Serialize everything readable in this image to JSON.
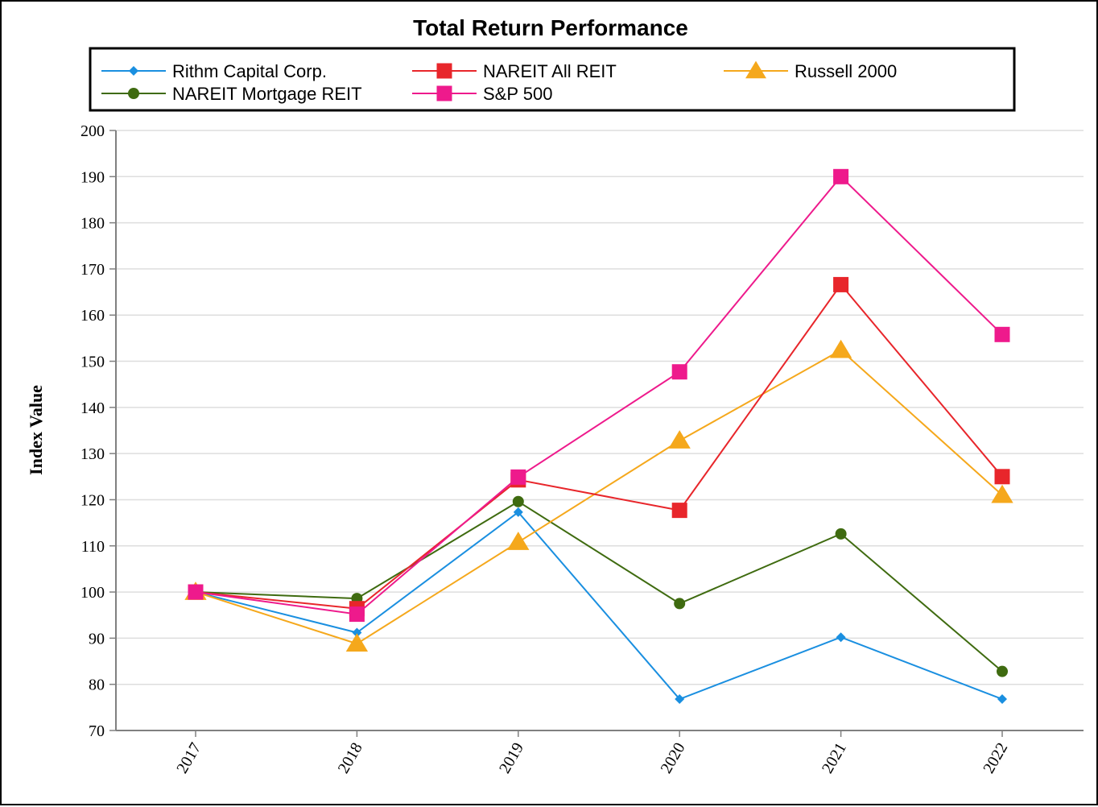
{
  "chart_data": {
    "type": "line",
    "title": "Total Return Performance",
    "xlabel": "",
    "ylabel": "Index Value",
    "categories": [
      "2017",
      "2018",
      "2019",
      "2020",
      "2021",
      "2022"
    ],
    "ylim": [
      70,
      200
    ],
    "yticks": [
      70,
      80,
      90,
      100,
      110,
      120,
      130,
      140,
      150,
      160,
      170,
      180,
      190,
      200
    ],
    "grid": true,
    "legend_position": "top",
    "series": [
      {
        "name": "Rithm Capital Corp.",
        "color": "#1a8fe0",
        "marker": "diamond",
        "values": [
          100.0,
          91.2,
          117.3,
          76.8,
          90.2,
          76.8
        ]
      },
      {
        "name": "NAREIT All REIT",
        "color": "#e8262b",
        "marker": "square",
        "values": [
          100.0,
          96.4,
          124.3,
          117.7,
          166.6,
          125.0
        ]
      },
      {
        "name": "Russell 2000",
        "color": "#f5a81c",
        "marker": "triangle",
        "values": [
          100.0,
          88.8,
          110.8,
          132.8,
          152.4,
          121.0
        ]
      },
      {
        "name": "NAREIT Mortgage REIT",
        "color": "#3f6b10",
        "marker": "circle",
        "values": [
          100.0,
          98.6,
          119.6,
          97.5,
          112.6,
          82.8
        ]
      },
      {
        "name": "S&P 500",
        "color": "#ee1a8c",
        "marker": "square",
        "values": [
          100.0,
          95.2,
          124.9,
          147.7,
          190.0,
          155.8
        ]
      }
    ]
  }
}
